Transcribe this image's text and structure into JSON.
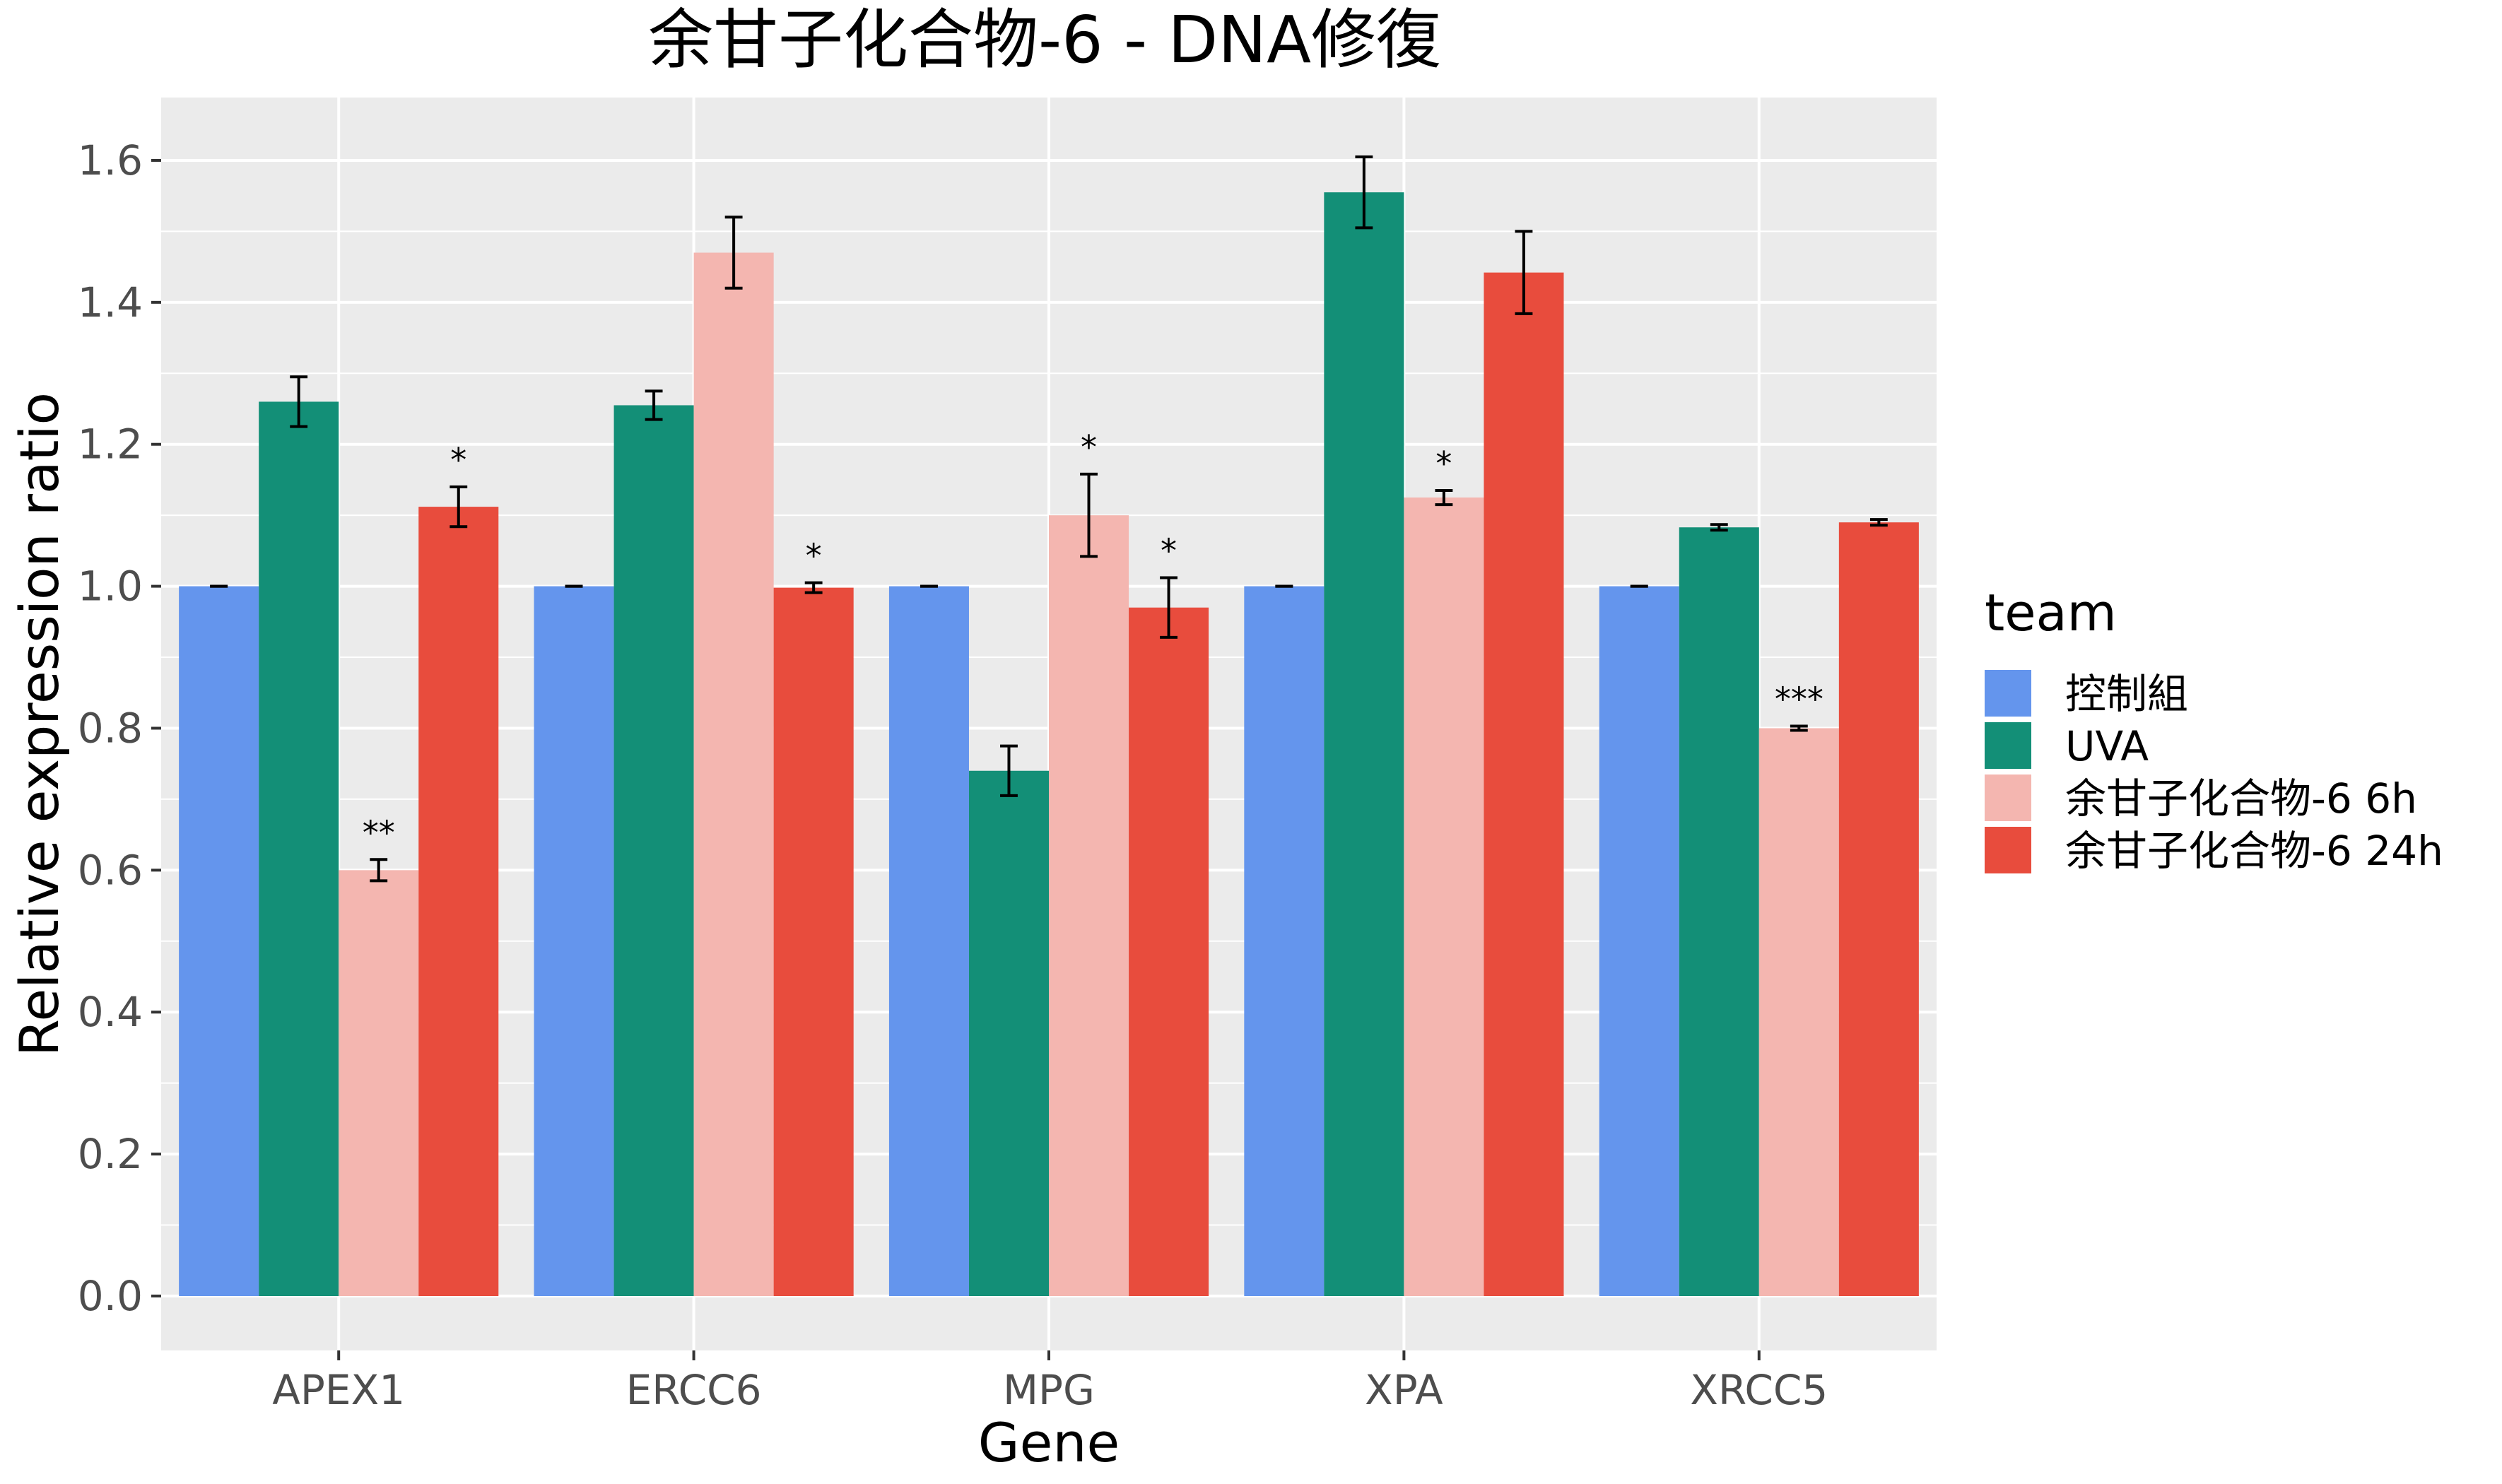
{
  "chart_data": {
    "type": "bar",
    "title": "余甘子化合物-6 - DNA修復",
    "xlabel": "Gene",
    "ylabel": "Relative expression ratio",
    "categories": [
      "APEX1",
      "ERCC6",
      "MPG",
      "XPA",
      "XRCC5"
    ],
    "ylim": [
      -0.08,
      1.68
    ],
    "yticks": [
      "0.0",
      "0.2",
      "0.4",
      "0.6",
      "0.8",
      "1.0",
      "1.2",
      "1.4",
      "1.6"
    ],
    "grid": true,
    "legend": {
      "title": "team",
      "position": "right"
    },
    "series": [
      {
        "name": "控制組",
        "color": "#6495ED",
        "values": [
          1.0,
          1.0,
          1.0,
          1.0,
          1.0
        ],
        "errors": [
          0.0,
          0.0,
          0.0,
          0.0,
          0.0
        ],
        "annotations": [
          "",
          "",
          "",
          "",
          ""
        ]
      },
      {
        "name": "UVA",
        "color": "#138F77",
        "values": [
          1.26,
          1.255,
          0.74,
          1.555,
          1.083
        ],
        "errors": [
          0.035,
          0.02,
          0.035,
          0.05,
          0.004
        ],
        "annotations": [
          "",
          "",
          "",
          "",
          ""
        ]
      },
      {
        "name": "余甘子化合物-6 6h",
        "color": "#F4B6B0",
        "values": [
          0.6,
          1.47,
          1.1,
          1.125,
          0.8
        ],
        "errors": [
          0.015,
          0.05,
          0.058,
          0.01,
          0.003
        ],
        "annotations": [
          "**",
          "",
          "*",
          "*",
          "***"
        ]
      },
      {
        "name": "余甘子化合物-6 24h",
        "color": "#E84C3D",
        "values": [
          1.112,
          0.998,
          0.97,
          1.442,
          1.09
        ],
        "errors": [
          0.028,
          0.007,
          0.042,
          0.058,
          0.004
        ],
        "annotations": [
          "*",
          "*",
          "*",
          "",
          ""
        ]
      }
    ]
  }
}
